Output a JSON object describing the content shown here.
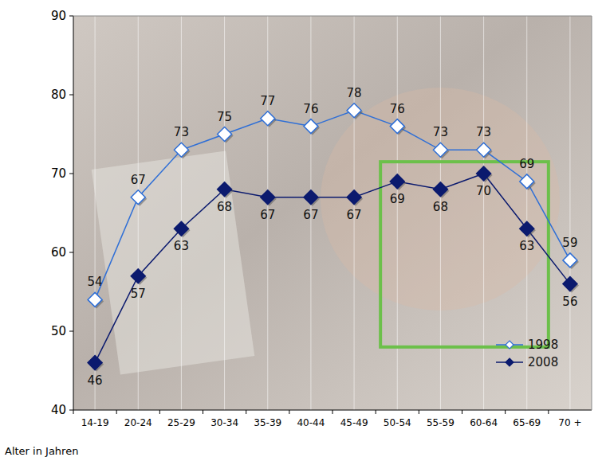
{
  "chart_data": {
    "type": "line",
    "x_label": "Alter in Jahren",
    "categories": [
      "14-19",
      "20-24",
      "25-29",
      "30-34",
      "35-39",
      "40-44",
      "45-49",
      "50-54",
      "55-59",
      "60-64",
      "65-69",
      "70 +"
    ],
    "series": [
      {
        "name": "1998",
        "color": "#2f6fd6",
        "marker": "diamond-open",
        "values": [
          54,
          67,
          73,
          75,
          77,
          76,
          78,
          76,
          73,
          73,
          69,
          59
        ]
      },
      {
        "name": "2008",
        "color": "#0b1a6e",
        "marker": "diamond",
        "values": [
          46,
          57,
          63,
          68,
          67,
          67,
          67,
          69,
          68,
          70,
          63,
          56
        ]
      }
    ],
    "ylim": [
      40,
      90
    ],
    "yticks": [
      40,
      50,
      60,
      70,
      80,
      90
    ],
    "grid": true,
    "legend": "lower right",
    "data_labels": true
  }
}
